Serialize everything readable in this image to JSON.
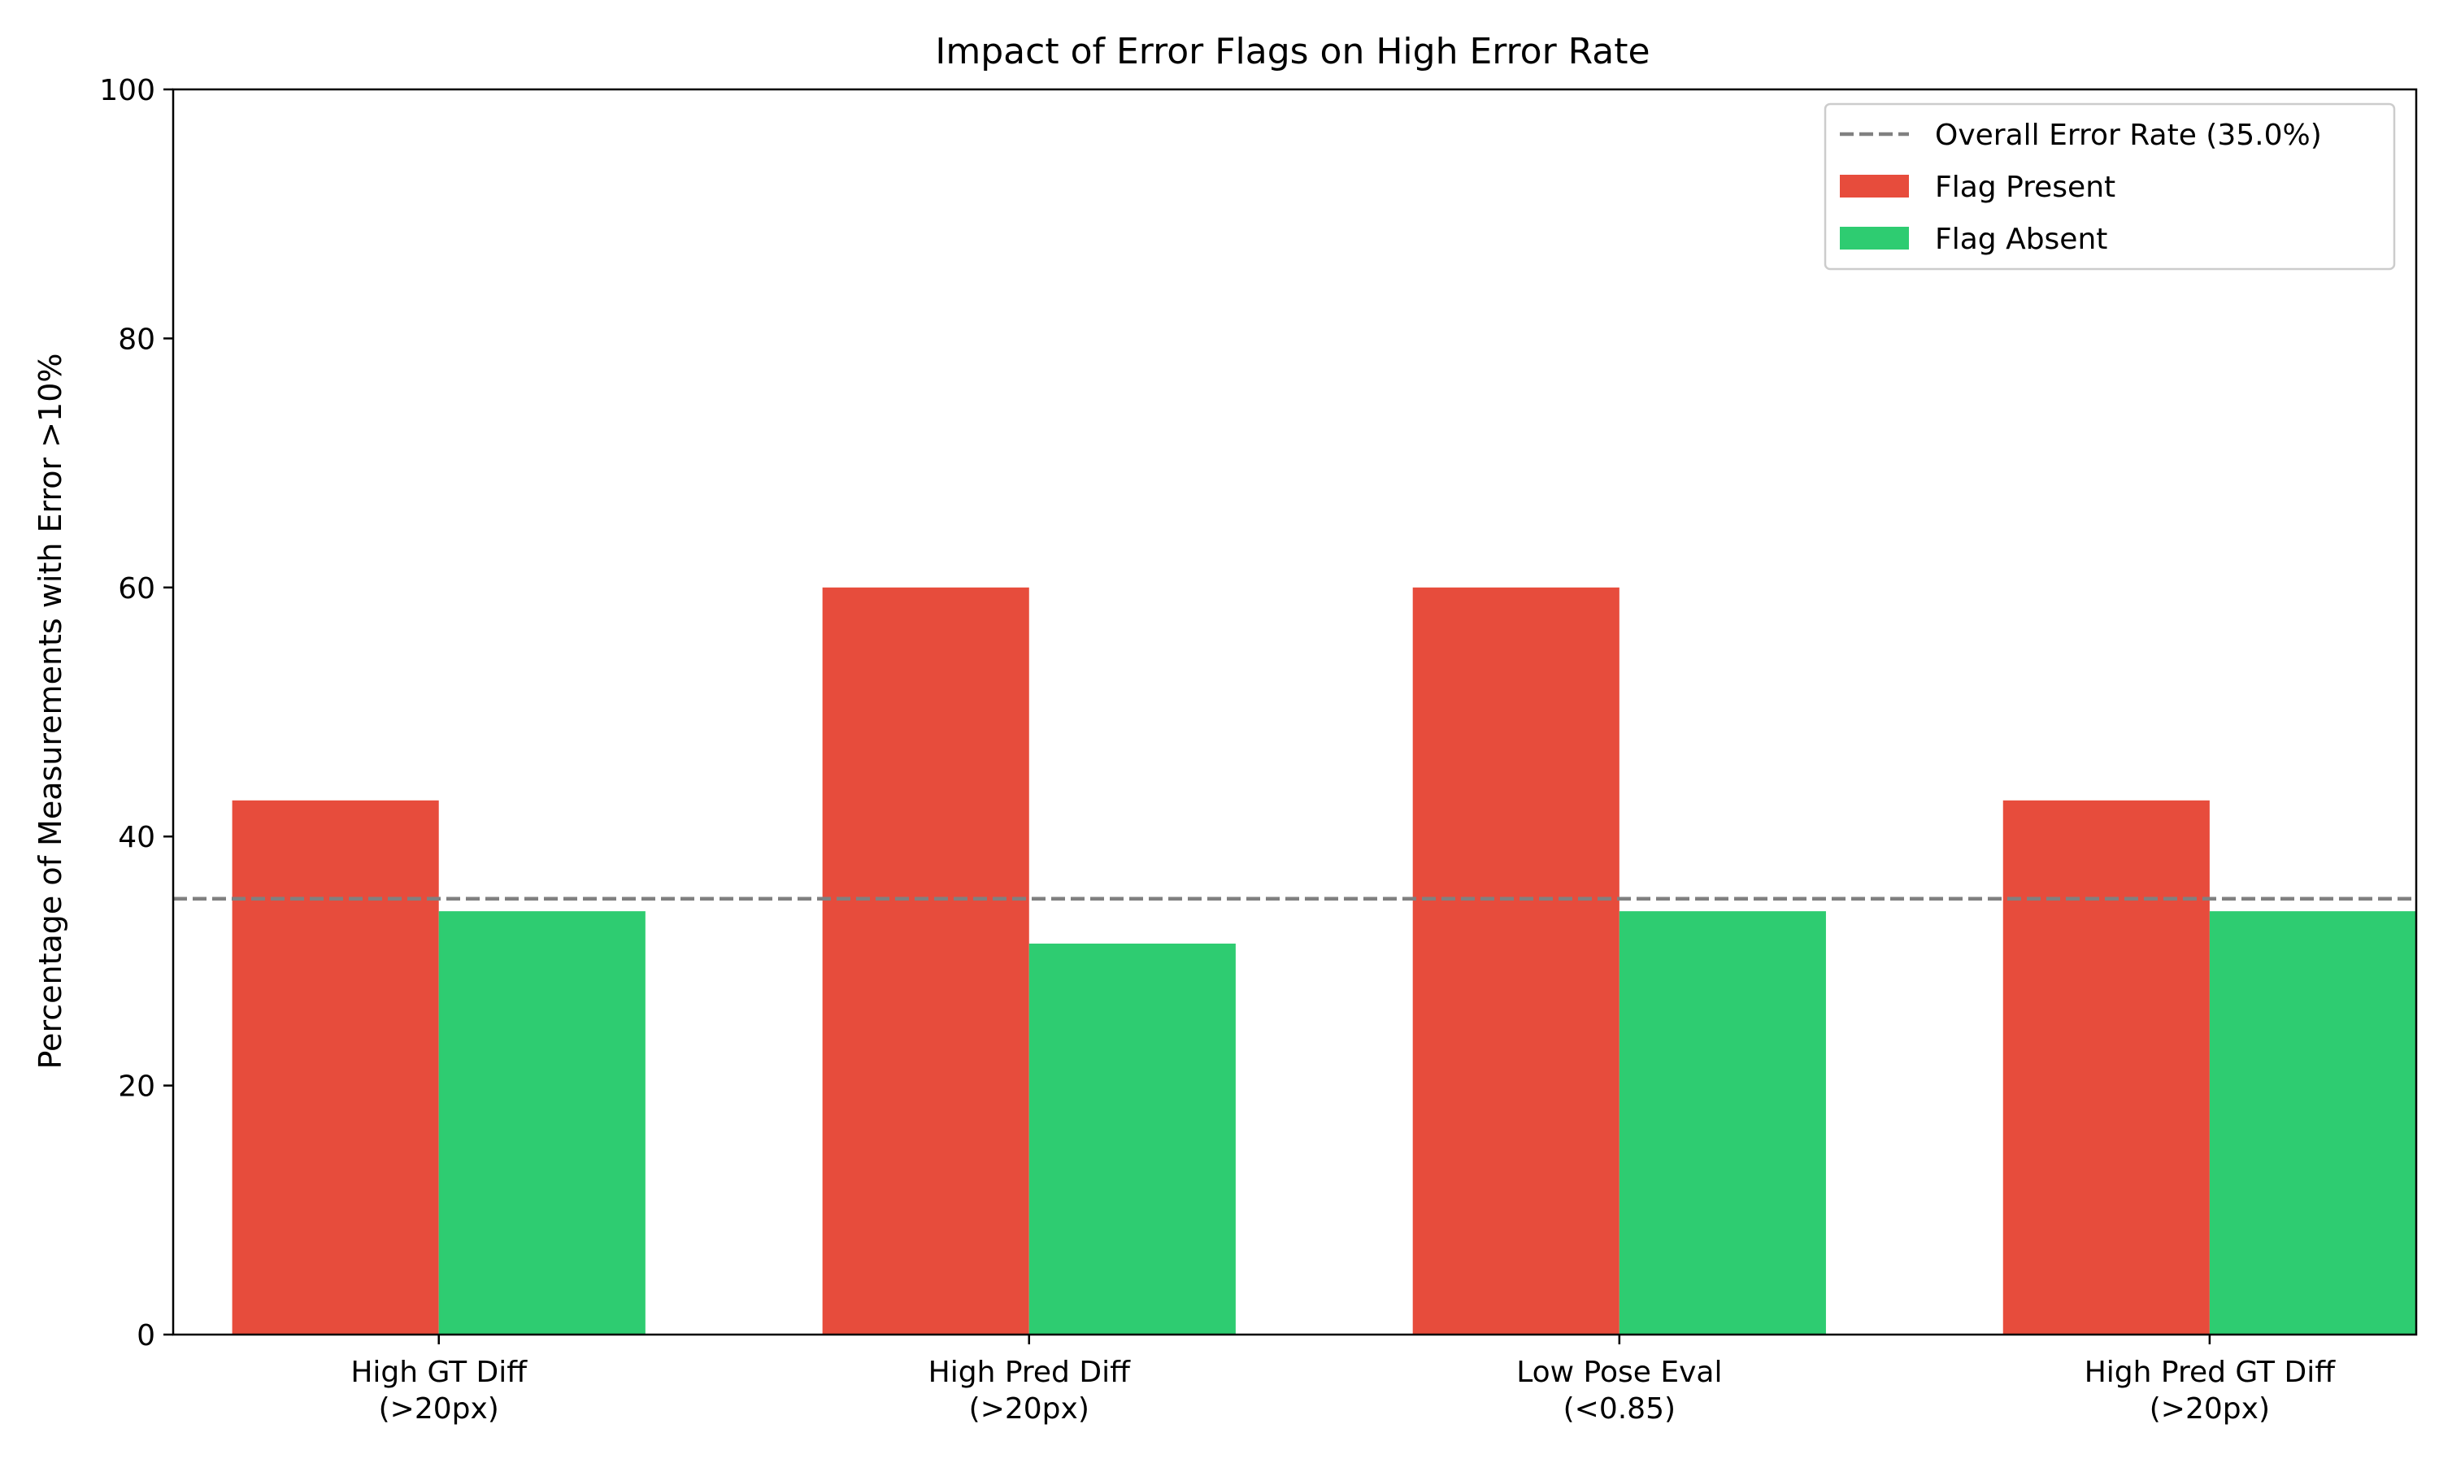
{
  "chart_data": {
    "type": "bar",
    "title": "Impact of Error Flags on High Error Rate",
    "xlabel": "",
    "ylabel": "Percentage of Measurements with Error >10%",
    "ylim": [
      0,
      100
    ],
    "yticks": [
      0,
      20,
      40,
      60,
      80,
      100
    ],
    "categories": [
      [
        "High GT Diff",
        "(>20px)"
      ],
      [
        "High Pred Diff",
        "(>20px)"
      ],
      [
        "Low Pose Eval",
        "(<0.85)"
      ],
      [
        "High Pred GT Diff",
        "(>20px)"
      ]
    ],
    "series": [
      {
        "name": "Flag Present",
        "color": "#e74c3c",
        "values": [
          42.9,
          60.0,
          60.0,
          42.9
        ]
      },
      {
        "name": "Flag Absent",
        "color": "#2ecc71",
        "values": [
          34.0,
          31.4,
          34.0,
          34.0
        ]
      }
    ],
    "reference_line": {
      "name": "Overall Error Rate (35.0%)",
      "value": 35.0,
      "color": "#808080",
      "style": "dashed"
    },
    "grid": false,
    "legend_position": "top-right"
  }
}
